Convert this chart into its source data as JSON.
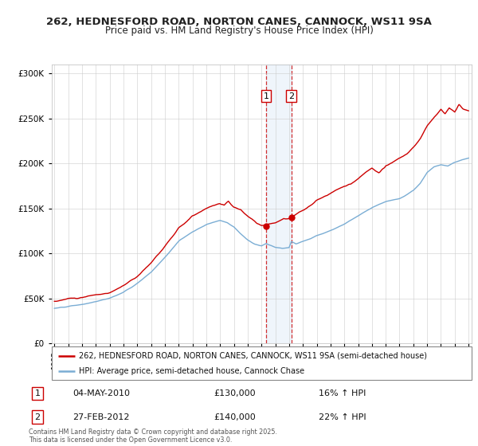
{
  "title1": "262, HEDNESFORD ROAD, NORTON CANES, CANNOCK, WS11 9SA",
  "title2": "Price paid vs. HM Land Registry's House Price Index (HPI)",
  "legend_line1": "262, HEDNESFORD ROAD, NORTON CANES, CANNOCK, WS11 9SA (semi-detached house)",
  "legend_line2": "HPI: Average price, semi-detached house, Cannock Chase",
  "transaction1_date": "04-MAY-2010",
  "transaction1_price": "£130,000",
  "transaction1_hpi": "16% ↑ HPI",
  "transaction2_date": "27-FEB-2012",
  "transaction2_price": "£140,000",
  "transaction2_hpi": "22% ↑ HPI",
  "footer": "Contains HM Land Registry data © Crown copyright and database right 2025.\nThis data is licensed under the Open Government Licence v3.0.",
  "red_color": "#cc0000",
  "blue_color": "#7aadd4",
  "shading_color": "#ddeeff",
  "background_color": "#ffffff",
  "ylim": [
    0,
    310000
  ],
  "yticks": [
    0,
    50000,
    100000,
    150000,
    200000,
    250000,
    300000
  ],
  "start_year": 1995,
  "end_year": 2025,
  "hpi_control_years": [
    1995,
    1996,
    1997,
    1998,
    1999,
    2000,
    2001,
    2002,
    2003,
    2004,
    2005,
    2006,
    2007,
    2007.5,
    2008,
    2008.5,
    2009,
    2009.5,
    2010,
    2010.33,
    2010.5,
    2011,
    2011.5,
    2012,
    2012.16,
    2012.5,
    2013,
    2013.5,
    2014,
    2015,
    2016,
    2017,
    2018,
    2019,
    2020,
    2020.5,
    2021,
    2021.5,
    2022,
    2022.5,
    2023,
    2023.5,
    2024,
    2024.5,
    2025
  ],
  "hpi_control_vals": [
    39000,
    41000,
    43000,
    46000,
    50000,
    57000,
    67000,
    80000,
    97000,
    115000,
    125000,
    133000,
    137000,
    135000,
    130000,
    122000,
    115000,
    110000,
    109000,
    112000,
    111000,
    108000,
    107000,
    108000,
    114750,
    112000,
    115000,
    118000,
    122000,
    128000,
    135000,
    144000,
    153000,
    160000,
    163000,
    167000,
    172000,
    180000,
    192000,
    198000,
    200000,
    198000,
    202000,
    205000,
    207000
  ],
  "prop_control_years": [
    1995,
    1996,
    1997,
    1998,
    1999,
    2000,
    2001,
    2002,
    2003,
    2004,
    2005,
    2006,
    2007,
    2007.3,
    2007.6,
    2008,
    2008.5,
    2009,
    2009.3,
    2009.6,
    2010,
    2010.33,
    2010.5,
    2011,
    2011.3,
    2011.6,
    2012,
    2012.16,
    2012.5,
    2013,
    2013.5,
    2014,
    2015,
    2016,
    2017,
    2018,
    2018.5,
    2019,
    2019.5,
    2020,
    2020.5,
    2021,
    2021.5,
    2022,
    2022.5,
    2023,
    2023.3,
    2023.6,
    2024,
    2024.3,
    2024.6,
    2025
  ],
  "prop_control_vals": [
    47000,
    50000,
    52000,
    56000,
    60000,
    68000,
    78000,
    92000,
    110000,
    130000,
    143000,
    150000,
    155000,
    153000,
    158000,
    152000,
    148000,
    140000,
    137000,
    133000,
    130000,
    130000,
    132000,
    133000,
    135000,
    138000,
    138000,
    140000,
    143000,
    147000,
    152000,
    158000,
    165000,
    173000,
    182000,
    193000,
    188000,
    196000,
    200000,
    205000,
    210000,
    218000,
    228000,
    242000,
    252000,
    260000,
    255000,
    262000,
    257000,
    265000,
    260000,
    257000
  ]
}
